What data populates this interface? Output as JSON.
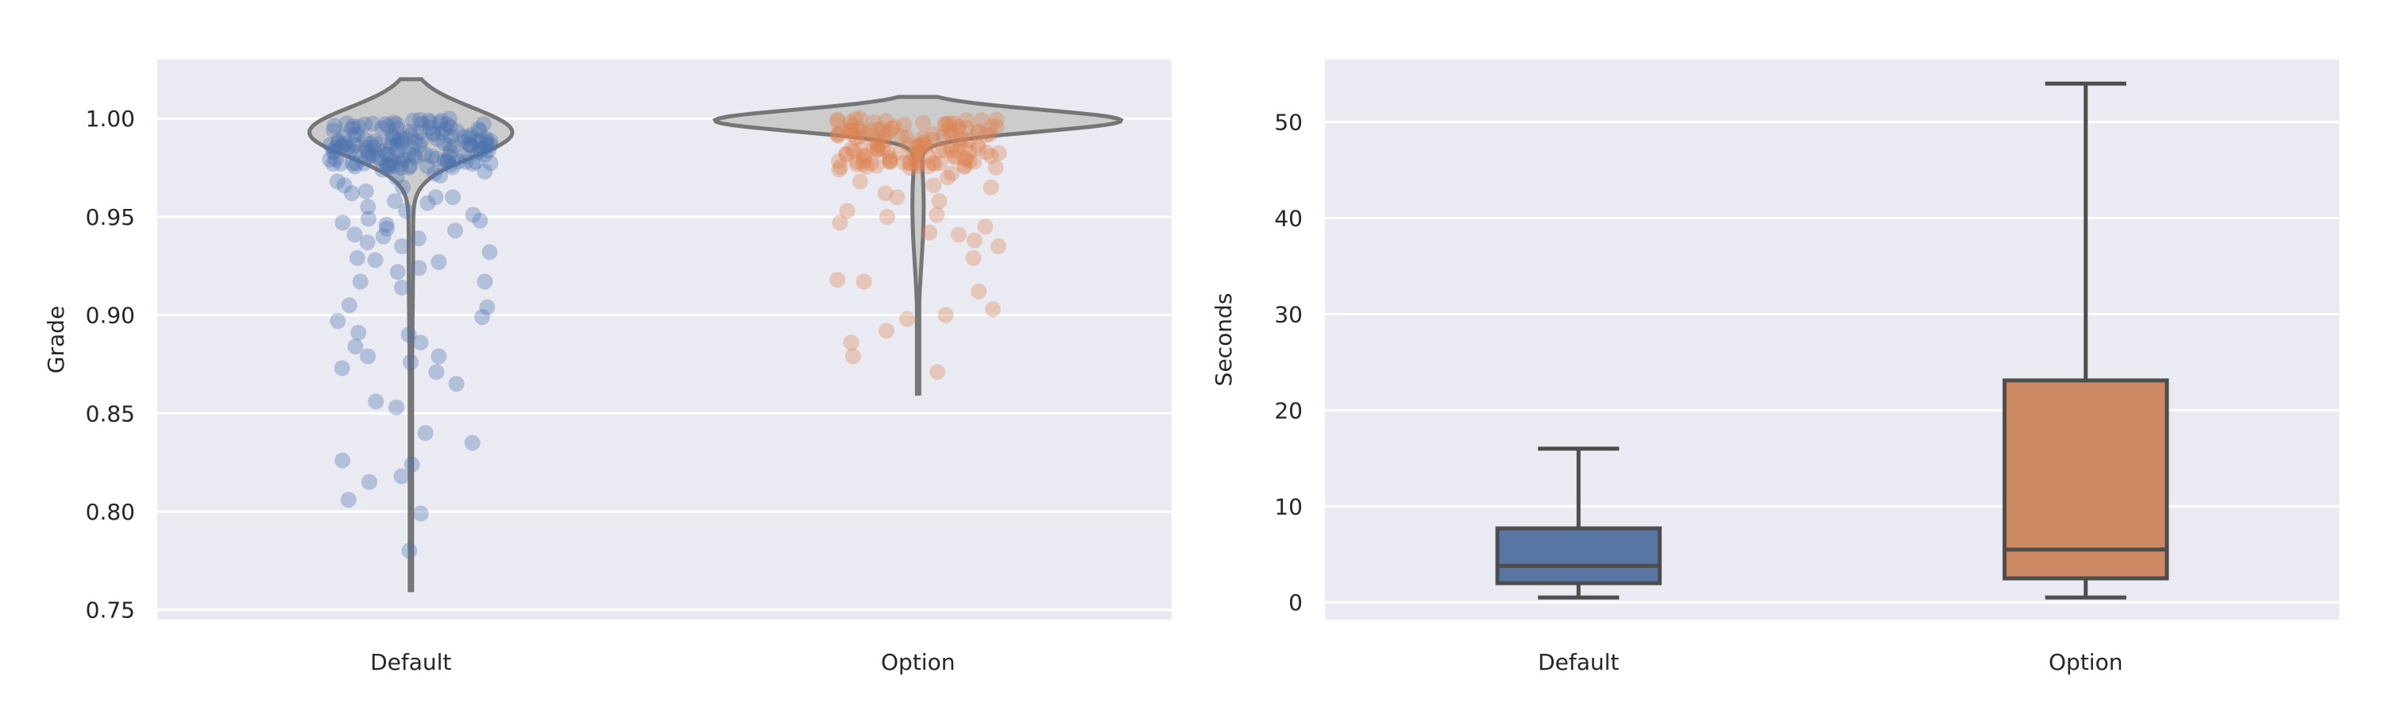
{
  "chart_data": [
    {
      "type": "violin",
      "title": "",
      "xlabel": "",
      "ylabel": "Grade",
      "ylim": [
        0.745,
        1.03
      ],
      "yticks": [
        0.75,
        0.8,
        0.85,
        0.9,
        0.95,
        1.0
      ],
      "ytick_labels": [
        "0.75",
        "0.80",
        "0.85",
        "0.90",
        "0.95",
        "1.00"
      ],
      "categories": [
        "Default",
        "Option"
      ],
      "grid": true,
      "violins": [
        {
          "category": "Default",
          "min": 0.76,
          "max": 1.02,
          "mode": 0.993
        },
        {
          "category": "Option",
          "min": 0.86,
          "max": 1.011,
          "mode": 0.999
        }
      ],
      "strip_points": [
        {
          "category": "Default",
          "color": "#4c72b0",
          "y": [
            0.78,
            0.799,
            0.806,
            0.815,
            0.818,
            0.824,
            0.826,
            0.835,
            0.84,
            0.853,
            0.856,
            0.865,
            0.871,
            0.873,
            0.876,
            0.879,
            0.879,
            0.884,
            0.886,
            0.89,
            0.891,
            0.897,
            0.899,
            0.904,
            0.905,
            0.914,
            0.917,
            0.917,
            0.922,
            0.924,
            0.927,
            0.928,
            0.929,
            0.932,
            0.935,
            0.937,
            0.939,
            0.94,
            0.941,
            0.943,
            0.944,
            0.946,
            0.947,
            0.948,
            0.949,
            0.951,
            0.953,
            0.955,
            0.957,
            0.958,
            0.96,
            0.96,
            0.962,
            0.963,
            0.965,
            0.966,
            0.968,
            0.97,
            0.971,
            0.972,
            0.973,
            0.974,
            0.975,
            0.976,
            0.977,
            0.978,
            0.979,
            0.98,
            0.981,
            0.982,
            0.983,
            0.984,
            0.985,
            0.986,
            0.987,
            0.988,
            0.989,
            0.99,
            0.991,
            0.992,
            0.993,
            0.994,
            0.995,
            0.996,
            0.997,
            0.998,
            0.999,
            1.0
          ]
        },
        {
          "category": "Option",
          "color": "#dd8452",
          "y": [
            0.871,
            0.879,
            0.886,
            0.892,
            0.898,
            0.9,
            0.903,
            0.912,
            0.917,
            0.918,
            0.929,
            0.935,
            0.938,
            0.941,
            0.942,
            0.945,
            0.947,
            0.95,
            0.951,
            0.953,
            0.958,
            0.96,
            0.962,
            0.965,
            0.966,
            0.968,
            0.97,
            0.972,
            0.974,
            0.976,
            0.978,
            0.98,
            0.982,
            0.984,
            0.986,
            0.988,
            0.99,
            0.992,
            0.994,
            0.996,
            0.998,
            1.0
          ]
        }
      ]
    },
    {
      "type": "box",
      "title": "",
      "xlabel": "",
      "ylabel": "Seconds",
      "ylim": [
        -1.8,
        56.5
      ],
      "yticks": [
        0,
        10,
        20,
        30,
        40,
        50
      ],
      "ytick_labels": [
        "0",
        "10",
        "20",
        "30",
        "40",
        "50"
      ],
      "categories": [
        "Default",
        "Option"
      ],
      "grid": true,
      "boxes": [
        {
          "category": "Default",
          "color": "#4c72b0",
          "whisker_low": 0.5,
          "q1": 2.0,
          "median": 3.8,
          "q3": 7.7,
          "whisker_high": 16.0
        },
        {
          "category": "Option",
          "color": "#dd8452",
          "whisker_low": 0.5,
          "q1": 2.5,
          "median": 5.5,
          "q3": 23.1,
          "whisker_high": 54.0
        }
      ]
    }
  ]
}
